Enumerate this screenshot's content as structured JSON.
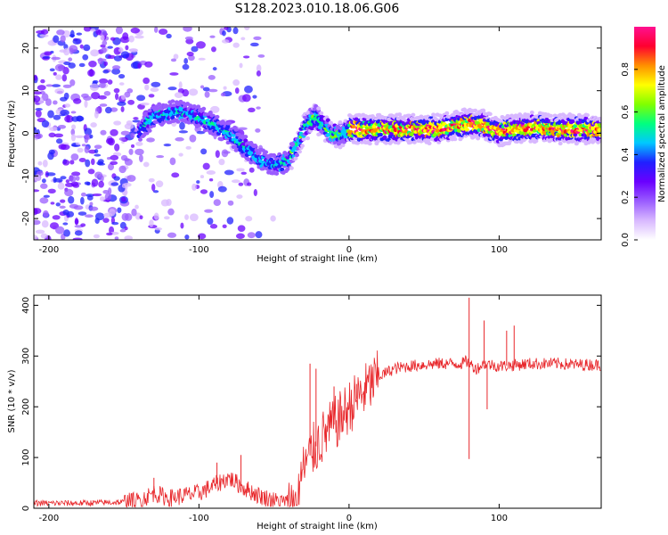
{
  "title": "S128.2023.010.18.06.G06",
  "chart_data": [
    {
      "type": "heatmap",
      "xlabel": "Height of straight line (km)",
      "ylabel": "Frequency (Hz)",
      "xlim": [
        -210,
        168
      ],
      "ylim": [
        -25,
        25
      ],
      "xticks": [
        -200,
        -100,
        0,
        100
      ],
      "yticks": [
        -20,
        -10,
        0,
        10,
        20
      ],
      "colorbar": {
        "label": "Normalized spectral amplitude",
        "range": [
          0.0,
          1.0
        ],
        "ticks": [
          0.0,
          0.2,
          0.4,
          0.6,
          0.8
        ],
        "colors": [
          "#ffffff",
          "#d8b8ff",
          "#9a5cff",
          "#6a00ff",
          "#2020ff",
          "#00c8ff",
          "#00ff80",
          "#80ff00",
          "#ffff00",
          "#ff9000",
          "#ff0030",
          "#ff1090"
        ]
      },
      "ridge": {
        "x": [
          -140,
          -130,
          -120,
          -110,
          -100,
          -90,
          -80,
          -70,
          -60,
          -50,
          -45,
          -40,
          -35,
          -30,
          -25,
          -22,
          -20,
          -15,
          -10,
          -5,
          0,
          20,
          40,
          60,
          75,
          80,
          90,
          95,
          100,
          110,
          120,
          140,
          168
        ],
        "y": [
          0.5,
          4,
          5,
          5,
          4,
          2,
          0,
          -3,
          -6,
          -7.5,
          -7,
          -6,
          -3,
          1,
          3.5,
          4,
          3,
          1,
          -0.5,
          0,
          1,
          1,
          1,
          1,
          2,
          2.5,
          2,
          1,
          0.5,
          1,
          1.5,
          1,
          1
        ]
      }
    },
    {
      "type": "line",
      "xlabel": "Height of straight line (km)",
      "ylabel": "SNR (10 * v/v)",
      "xlim": [
        -210,
        168
      ],
      "ylim": [
        0,
        420
      ],
      "xticks": [
        -200,
        -100,
        0,
        100
      ],
      "yticks": [
        0,
        100,
        200,
        300,
        400
      ],
      "series": [
        {
          "color": "#e8262a",
          "x": [
            -210,
            -180,
            -150,
            -140,
            -130,
            -120,
            -110,
            -100,
            -90,
            -80,
            -70,
            -60,
            -50,
            -40,
            -35,
            -30,
            -25,
            -20,
            -15,
            -10,
            -5,
            0,
            10,
            20,
            30,
            40,
            50,
            60,
            70,
            75,
            78,
            80,
            85,
            90,
            100,
            110,
            120,
            130,
            140,
            150,
            168
          ],
          "y": [
            10,
            10,
            12,
            15,
            30,
            20,
            25,
            30,
            45,
            60,
            40,
            25,
            15,
            10,
            30,
            80,
            110,
            130,
            150,
            165,
            180,
            200,
            230,
            260,
            275,
            280,
            283,
            285,
            285,
            285,
            290,
            285,
            275,
            285,
            280,
            282,
            285,
            285,
            285,
            283,
            283
          ]
        }
      ],
      "spikes": [
        {
          "x": -130,
          "y": 60
        },
        {
          "x": -88,
          "y": 90
        },
        {
          "x": -72,
          "y": 105
        },
        {
          "x": -26,
          "y": 285
        },
        {
          "x": -22,
          "y": 275
        },
        {
          "x": -10,
          "y": 240
        },
        {
          "x": 5,
          "y": 245
        },
        {
          "x": 80,
          "y": 415
        },
        {
          "x": 80,
          "y": 97
        },
        {
          "x": 90,
          "y": 370
        },
        {
          "x": 92,
          "y": 195
        },
        {
          "x": 105,
          "y": 350
        },
        {
          "x": 110,
          "y": 360
        }
      ]
    }
  ]
}
